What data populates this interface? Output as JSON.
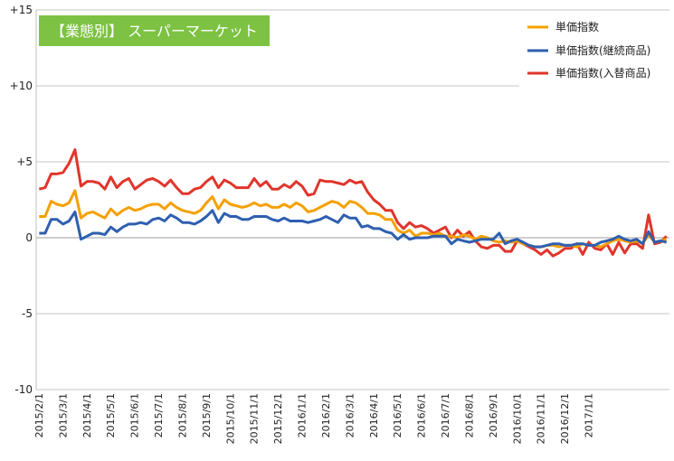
{
  "colors": {
    "avg": "#F5A000",
    "continuing": "#2E5FB0",
    "replaced": "#E0352B",
    "title_bg": "#7DC242",
    "grid": "#B0B0B0"
  },
  "chart_data": {
    "type": "line",
    "title": "【業態別】 スーパーマーケット",
    "xlabel": "",
    "ylabel": "",
    "ylim": [
      -10,
      15
    ],
    "y_ticks": [
      "-10",
      "-5",
      "0",
      "+5",
      "+10",
      "+15"
    ],
    "y_tick_values": [
      -10,
      -5,
      0,
      5,
      10,
      15
    ],
    "x_ticks": [
      "2015/2/1",
      "2015/3/1",
      "2015/4/1",
      "2015/5/1",
      "2015/6/1",
      "2015/7/1",
      "2015/8/1",
      "2015/9/1",
      "2015/10/1",
      "2015/11/1",
      "2015/12/1",
      "2016/1/1",
      "2016/2/1",
      "2016/3/1",
      "2016/4/1",
      "2016/5/1",
      "2016/6/1",
      "2016/7/1",
      "2016/8/1",
      "2016/9/1",
      "2016/10/1",
      "2016/11/1",
      "2016/12/1",
      "2017/1/1"
    ],
    "points_per_month": 4,
    "grid": true,
    "legend_position": "top-right",
    "series": [
      {
        "name": "単価指数",
        "color_key": "avg",
        "values": [
          1.4,
          1.4,
          2.4,
          2.2,
          2.1,
          2.3,
          3.1,
          1.3,
          1.6,
          1.7,
          1.5,
          1.3,
          1.9,
          1.5,
          1.8,
          2.0,
          1.8,
          1.9,
          2.1,
          2.2,
          2.2,
          1.9,
          2.3,
          2.0,
          1.8,
          1.7,
          1.6,
          1.8,
          2.3,
          2.7,
          1.9,
          2.5,
          2.2,
          2.1,
          2.0,
          2.1,
          2.3,
          2.1,
          2.2,
          2.0,
          2.0,
          2.2,
          2.0,
          2.3,
          2.1,
          1.7,
          1.8,
          2.0,
          2.2,
          2.4,
          2.3,
          2.0,
          2.4,
          2.3,
          2.0,
          1.6,
          1.6,
          1.5,
          1.2,
          1.2,
          0.5,
          0.3,
          0.5,
          0.1,
          0.3,
          0.3,
          0.2,
          0.3,
          0.1,
          0.1,
          0.0,
          0.2,
          0.1,
          -0.1,
          0.1,
          0.0,
          -0.2,
          -0.3,
          -0.2,
          -0.3,
          -0.2,
          -0.4,
          -0.5,
          -0.6,
          -0.6,
          -0.5,
          -0.5,
          -0.6,
          -0.5,
          -0.5,
          -0.6,
          -0.4,
          -0.5,
          -0.5,
          -0.6,
          -0.4,
          -0.2,
          -0.1,
          -0.2,
          -0.3,
          -0.2,
          -0.4,
          0.2,
          -0.3,
          -0.2,
          -0.1
        ]
      },
      {
        "name": "単価指数(継続商品)",
        "color_key": "continuing",
        "values": [
          0.3,
          0.3,
          1.2,
          1.2,
          0.9,
          1.1,
          1.7,
          -0.1,
          0.1,
          0.3,
          0.3,
          0.2,
          0.7,
          0.4,
          0.7,
          0.9,
          0.9,
          1.0,
          0.9,
          1.2,
          1.3,
          1.1,
          1.5,
          1.3,
          1.0,
          1.0,
          0.9,
          1.1,
          1.4,
          1.8,
          1.0,
          1.6,
          1.4,
          1.4,
          1.2,
          1.2,
          1.4,
          1.4,
          1.4,
          1.2,
          1.1,
          1.3,
          1.1,
          1.1,
          1.1,
          1.0,
          1.1,
          1.2,
          1.4,
          1.2,
          1.0,
          1.5,
          1.3,
          1.3,
          0.7,
          0.8,
          0.6,
          0.6,
          0.4,
          0.3,
          -0.1,
          0.2,
          -0.1,
          0.0,
          0.0,
          0.0,
          0.1,
          0.1,
          0.1,
          -0.4,
          -0.1,
          -0.2,
          -0.3,
          -0.2,
          -0.1,
          -0.1,
          -0.1,
          0.3,
          -0.4,
          -0.2,
          -0.1,
          -0.3,
          -0.5,
          -0.6,
          -0.6,
          -0.5,
          -0.4,
          -0.4,
          -0.5,
          -0.5,
          -0.4,
          -0.4,
          -0.5,
          -0.5,
          -0.3,
          -0.2,
          -0.1,
          0.1,
          -0.1,
          -0.2,
          -0.1,
          -0.4,
          0.4,
          -0.3,
          -0.2,
          -0.3
        ]
      },
      {
        "name": "単価指数(入替商品)",
        "color_key": "replaced",
        "values": [
          3.2,
          3.3,
          4.2,
          4.2,
          4.3,
          4.9,
          5.8,
          3.4,
          3.7,
          3.7,
          3.6,
          3.2,
          4.0,
          3.3,
          3.7,
          3.9,
          3.2,
          3.5,
          3.8,
          3.9,
          3.7,
          3.4,
          3.8,
          3.3,
          2.9,
          2.9,
          3.2,
          3.3,
          3.7,
          4.0,
          3.3,
          3.8,
          3.6,
          3.3,
          3.3,
          3.3,
          3.9,
          3.4,
          3.7,
          3.2,
          3.2,
          3.5,
          3.3,
          3.7,
          3.4,
          2.8,
          2.9,
          3.8,
          3.7,
          3.7,
          3.6,
          3.5,
          3.8,
          3.6,
          3.7,
          3.0,
          2.5,
          2.2,
          1.8,
          1.8,
          1.0,
          0.6,
          1.0,
          0.7,
          0.8,
          0.6,
          0.3,
          0.5,
          0.7,
          0.0,
          0.5,
          0.1,
          0.4,
          -0.2,
          -0.6,
          -0.7,
          -0.5,
          -0.5,
          -0.9,
          -0.9,
          -0.2,
          -0.4,
          -0.6,
          -0.8,
          -1.1,
          -0.8,
          -1.2,
          -1.0,
          -0.7,
          -0.7,
          -0.4,
          -1.1,
          -0.3,
          -0.7,
          -0.8,
          -0.4,
          -1.1,
          -0.3,
          -1.0,
          -0.4,
          -0.4,
          -0.7,
          1.5,
          -0.4,
          -0.3,
          0.1
        ]
      }
    ]
  }
}
